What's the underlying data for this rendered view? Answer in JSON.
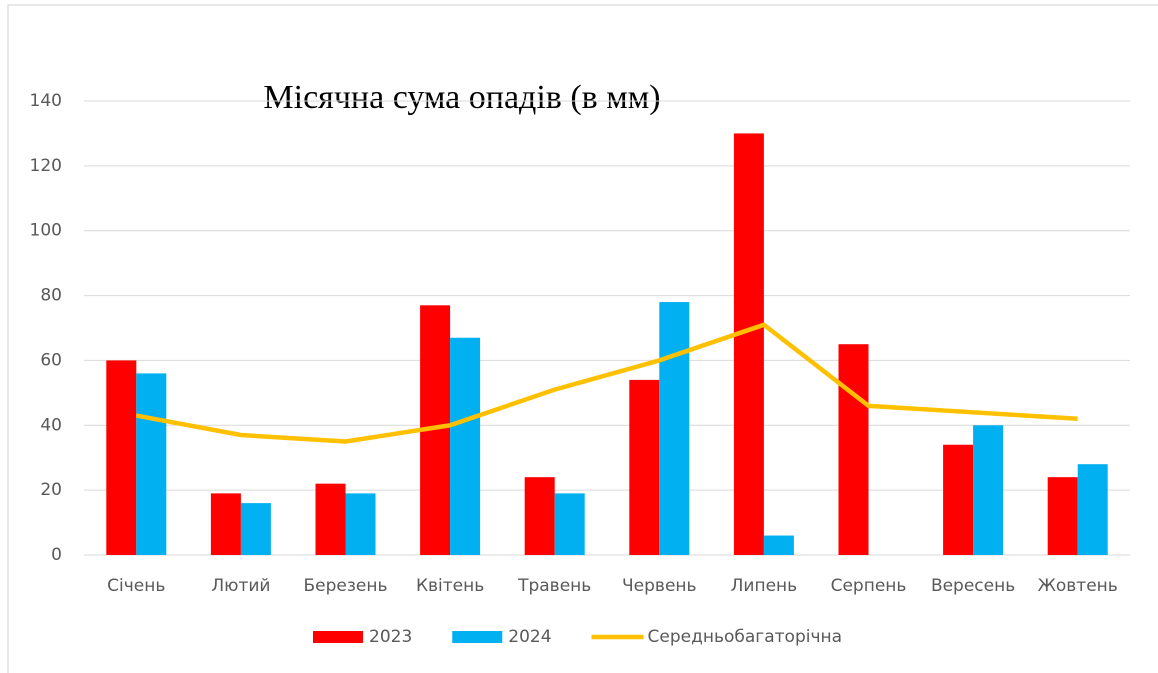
{
  "chart_data": {
    "type": "bar",
    "title": "Місячна сума опадів (в мм)",
    "categories": [
      "Січень",
      "Лютий",
      "Березень",
      "Квітень",
      "Травень",
      "Червень",
      "Липень",
      "Серпень",
      "Вересень",
      "Жовтень"
    ],
    "series": [
      {
        "name": "2023",
        "color": "#ff0000",
        "values": [
          60,
          19,
          22,
          77,
          24,
          54,
          130,
          65,
          34,
          24
        ]
      },
      {
        "name": "2024",
        "color": "#00b0f0",
        "values": [
          56,
          16,
          19,
          67,
          19,
          78,
          6,
          null,
          40,
          28
        ]
      },
      {
        "name": "Середньобагаторічна",
        "color": "#ffc000",
        "type": "line",
        "values": [
          43,
          37,
          35,
          40,
          51,
          60,
          71,
          46,
          44,
          42
        ]
      }
    ],
    "ylim": [
      0,
      140
    ],
    "yticks": [
      0,
      20,
      40,
      60,
      80,
      100,
      120,
      140
    ],
    "grid": true,
    "legend": "bottom"
  }
}
